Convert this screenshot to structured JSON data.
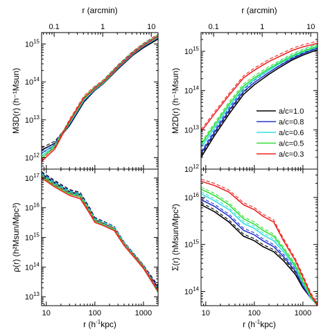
{
  "figure": {
    "top_axis_label": "r (arcmin)",
    "bottom_axis_label": "r (h⁻¹kpc)"
  },
  "chart_data": [
    {
      "id": "M3D",
      "type": "line",
      "ylabel": "M3D(r) (h⁻¹Msun)",
      "xlabel_top": "r (arcmin)",
      "xscale": "log",
      "yscale": "log",
      "xlim": [
        8,
        2000
      ],
      "ylim": [
        500000000000.0,
        2000000000000000.0
      ],
      "xticks": [
        10,
        100,
        1000
      ],
      "xtick_labels": [
        "",
        "",
        ""
      ],
      "top_xticks": [
        0.1,
        1,
        10
      ],
      "top_xtick_labels": [
        "0.1",
        "1",
        "10"
      ],
      "yticks": [
        1000000000000.0,
        10000000000000.0,
        100000000000000.0,
        1000000000000000.0
      ],
      "ytick_labels": [
        "10¹²",
        "10¹³",
        "10¹⁴",
        "10¹⁵"
      ],
      "series": [
        {
          "color": "#000000",
          "x": [
            8,
            15,
            30,
            60,
            100,
            150,
            300,
            600,
            1000,
            2000
          ],
          "y": [
            1600000000000.0,
            2400000000000.0,
            7000000000000.0,
            30000000000000.0,
            60000000000000.0,
            90000000000000.0,
            220000000000000.0,
            500000000000000.0,
            800000000000000.0,
            1350000000000000.0
          ]
        },
        {
          "color": "#2233cc",
          "x": [
            8,
            15,
            30,
            60,
            100,
            150,
            300,
            600,
            1000,
            2000
          ],
          "y": [
            1300000000000.0,
            2200000000000.0,
            7500000000000.0,
            32000000000000.0,
            62000000000000.0,
            92000000000000.0,
            230000000000000.0,
            520000000000000.0,
            850000000000000.0,
            1450000000000000.0
          ]
        },
        {
          "color": "#33dddd",
          "x": [
            8,
            15,
            30,
            60,
            100,
            150,
            300,
            600,
            1000,
            2000
          ],
          "y": [
            1100000000000.0,
            2000000000000.0,
            8000000000000.0,
            34000000000000.0,
            64000000000000.0,
            94000000000000.0,
            240000000000000.0,
            540000000000000.0,
            880000000000000.0,
            1500000000000000.0
          ]
        },
        {
          "color": "#33dd33",
          "x": [
            8,
            15,
            30,
            60,
            100,
            150,
            300,
            600,
            1000,
            2000
          ],
          "y": [
            950000000000.0,
            1900000000000.0,
            8500000000000.0,
            36000000000000.0,
            66000000000000.0,
            96000000000000.0,
            245000000000000.0,
            550000000000000.0,
            900000000000000.0,
            1550000000000000.0
          ]
        },
        {
          "color": "#ee2222",
          "x": [
            8,
            15,
            30,
            60,
            100,
            150,
            300,
            600,
            1000,
            2000
          ],
          "y": [
            800000000000.0,
            1700000000000.0,
            9000000000000.0,
            38000000000000.0,
            68000000000000.0,
            100000000000000.0,
            250000000000000.0,
            560000000000000.0,
            920000000000000.0,
            1600000000000000.0
          ]
        }
      ]
    },
    {
      "id": "M2D",
      "type": "line",
      "ylabel": "M2D(r) (h⁻¹Msun)",
      "xlabel_top": "r (arcmin)",
      "xscale": "log",
      "yscale": "log",
      "xlim": [
        8,
        2000
      ],
      "ylim": [
        1000000000000.0,
        3000000000000000.0
      ],
      "xticks": [
        10,
        100,
        1000
      ],
      "xtick_labels": [
        "",
        "",
        ""
      ],
      "top_xticks": [
        0.1,
        1,
        10
      ],
      "top_xtick_labels": [
        "0.1",
        "1",
        "10"
      ],
      "yticks": [
        1000000000000.0,
        10000000000000.0,
        100000000000000.0,
        1000000000000000.0
      ],
      "ytick_labels": [
        "10¹²",
        "10¹³",
        "10¹⁴",
        "10¹⁵"
      ],
      "legend": {
        "placement": "center-right",
        "entries": [
          "a/c=1.0",
          "a/c=0.8",
          "a/c=0.6",
          "a/c=0.5",
          "a/c=0.3"
        ]
      },
      "series": [
        {
          "name": "a/c=1.0",
          "color": "#000000",
          "x": [
            8,
            15,
            30,
            60,
            100,
            200,
            300,
            600,
            1000,
            2000
          ],
          "y": [
            2000000000000.0,
            7000000000000.0,
            25000000000000.0,
            80000000000000.0,
            140000000000000.0,
            260000000000000.0,
            360000000000000.0,
            600000000000000.0,
            800000000000000.0,
            1100000000000000.0
          ]
        },
        {
          "name": "a/c=0.8",
          "color": "#2233cc",
          "x": [
            8,
            15,
            30,
            60,
            100,
            200,
            300,
            600,
            1000,
            2000
          ],
          "y": [
            2500000000000.0,
            8500000000000.0,
            31000000000000.0,
            95000000000000.0,
            160000000000000.0,
            290000000000000.0,
            400000000000000.0,
            650000000000000.0,
            870000000000000.0,
            1200000000000000.0
          ]
        },
        {
          "name": "a/c=0.6",
          "color": "#33dddd",
          "x": [
            8,
            15,
            30,
            60,
            100,
            200,
            300,
            600,
            1000,
            2000
          ],
          "y": [
            3500000000000.0,
            11000000000000.0,
            39000000000000.0,
            115000000000000.0,
            190000000000000.0,
            330000000000000.0,
            450000000000000.0,
            720000000000000.0,
            950000000000000.0,
            1300000000000000.0
          ]
        },
        {
          "name": "a/c=0.5",
          "color": "#33dd33",
          "x": [
            8,
            15,
            30,
            60,
            100,
            200,
            300,
            600,
            1000,
            2000
          ],
          "y": [
            4200000000000.0,
            13000000000000.0,
            45000000000000.0,
            130000000000000.0,
            210000000000000.0,
            360000000000000.0,
            480000000000000.0,
            760000000000000.0,
            1000000000000000.0,
            1350000000000000.0
          ]
        },
        {
          "name": "a/c=0.3",
          "color": "#ee2222",
          "x": [
            8,
            15,
            30,
            60,
            100,
            200,
            300,
            600,
            1000,
            2000
          ],
          "y": [
            9000000000000.0,
            25000000000000.0,
            75000000000000.0,
            210000000000000.0,
            330000000000000.0,
            550000000000000.0,
            700000000000000.0,
            1050000000000000.0,
            1300000000000000.0,
            1600000000000000.0
          ]
        }
      ]
    },
    {
      "id": "rho",
      "type": "line",
      "ylabel": "ρ(r) (h²Msun/Mpc³)",
      "xlabel": "r (h⁻¹kpc)",
      "xscale": "log",
      "yscale": "log",
      "xlim": [
        8,
        2000
      ],
      "ylim": [
        5000000000000.0,
        2e+17
      ],
      "xticks": [
        10,
        100,
        1000
      ],
      "xtick_labels": [
        "10",
        "100",
        "1000"
      ],
      "yticks": [
        10000000000000.0,
        100000000000000.0,
        1000000000000000.0,
        1e+16,
        1e+17
      ],
      "ytick_labels": [
        "10¹³",
        "10¹⁴",
        "10¹⁵",
        "10¹⁶",
        "10¹⁷"
      ],
      "series": [
        {
          "color": "#000000",
          "x": [
            8,
            15,
            30,
            50,
            80,
            100,
            150,
            250,
            400,
            700,
            1000,
            2000
          ],
          "y": [
            1.4e+17,
            7e+16,
            3.5e+16,
            2.8e+16,
            8000000000000000.0,
            4000000000000000.0,
            3000000000000000.0,
            2000000000000000.0,
            600000000000000.0,
            200000000000000.0,
            100000000000000.0,
            20000000000000.0
          ]
        },
        {
          "color": "#2233cc",
          "x": [
            8,
            15,
            30,
            50,
            80,
            100,
            150,
            250,
            400,
            700,
            1000,
            2000
          ],
          "y": [
            1.3e+17,
            6.5e+16,
            3.3e+16,
            2.6e+16,
            7500000000000000.0,
            3800000000000000.0,
            2900000000000000.0,
            2000000000000000.0,
            600000000000000.0,
            200000000000000.0,
            100000000000000.0,
            18000000000000.0
          ]
        },
        {
          "color": "#33dddd",
          "x": [
            8,
            15,
            30,
            50,
            80,
            100,
            150,
            250,
            400,
            700,
            1000,
            2000
          ],
          "y": [
            1.2e+17,
            6e+16,
            3.1e+16,
            2.5e+16,
            7000000000000000.0,
            3600000000000000.0,
            2800000000000000.0,
            1900000000000000.0,
            580000000000000.0,
            190000000000000.0,
            95000000000000.0,
            15000000000000.0
          ]
        },
        {
          "color": "#33dd33",
          "x": [
            8,
            15,
            30,
            50,
            80,
            100,
            150,
            250,
            400,
            700,
            1000,
            2000
          ],
          "y": [
            1.1e+17,
            5.5e+16,
            2.9e+16,
            2.3e+16,
            6500000000000000.0,
            3400000000000000.0,
            2600000000000000.0,
            1800000000000000.0,
            550000000000000.0,
            190000000000000.0,
            95000000000000.0,
            14000000000000.0
          ]
        },
        {
          "color": "#ee2222",
          "x": [
            8,
            15,
            30,
            50,
            80,
            100,
            150,
            250,
            400,
            700,
            1000,
            2000
          ],
          "y": [
            1e+17,
            5e+16,
            2.6e+16,
            2e+16,
            6000000000000000.0,
            3200000000000000.0,
            2500000000000000.0,
            1700000000000000.0,
            530000000000000.0,
            180000000000000.0,
            90000000000000.0,
            15000000000000.0
          ]
        }
      ]
    },
    {
      "id": "Sigma",
      "type": "line",
      "ylabel": "Σ(r) (hMsun/Mpc²)",
      "xlabel": "r (h⁻¹kpc)",
      "xscale": "log",
      "yscale": "log",
      "xlim": [
        8,
        2000
      ],
      "ylim": [
        50000000000000.0,
        4e+16
      ],
      "xticks": [
        10,
        100,
        1000
      ],
      "xtick_labels": [
        "10",
        "100",
        "1000"
      ],
      "yticks": [
        100000000000000.0,
        1000000000000000.0,
        1e+16
      ],
      "ytick_labels": [
        "10¹⁴",
        "10¹⁵",
        "10¹⁶"
      ],
      "series": [
        {
          "color": "#000000",
          "x": [
            8,
            15,
            30,
            60,
            100,
            150,
            250,
            400,
            700,
            1000,
            1500,
            2000
          ],
          "y": [
            7000000000000000.0,
            5000000000000000.0,
            3000000000000000.0,
            1500000000000000.0,
            1200000000000000.0,
            900000000000000.0,
            700000000000000.0,
            450000000000000.0,
            230000000000000.0,
            120000000000000.0,
            70000000000000.0,
            50000000000000.0
          ]
        },
        {
          "color": "#2233cc",
          "x": [
            8,
            15,
            30,
            60,
            100,
            150,
            250,
            400,
            700,
            1000,
            1500,
            2000
          ],
          "y": [
            9000000000000000.0,
            6500000000000000.0,
            4000000000000000.0,
            2000000000000000.0,
            1600000000000000.0,
            1200000000000000.0,
            900000000000000.0,
            550000000000000.0,
            270000000000000.0,
            130000000000000.0,
            70000000000000.0,
            50000000000000.0
          ]
        },
        {
          "color": "#33dddd",
          "x": [
            8,
            15,
            30,
            60,
            100,
            150,
            250,
            400,
            700,
            1000,
            1500,
            2000
          ],
          "y": [
            1.2e+16,
            8500000000000000.0,
            5500000000000000.0,
            2800000000000000.0,
            2200000000000000.0,
            1600000000000000.0,
            1200000000000000.0,
            700000000000000.0,
            320000000000000.0,
            150000000000000.0,
            70000000000000.0,
            50000000000000.0
          ]
        },
        {
          "color": "#33dd33",
          "x": [
            8,
            15,
            30,
            60,
            100,
            150,
            250,
            400,
            700,
            1000,
            1500,
            2000
          ],
          "y": [
            1.5e+16,
            1.1e+16,
            7000000000000000.0,
            3500000000000000.0,
            2700000000000000.0,
            2000000000000000.0,
            1500000000000000.0,
            800000000000000.0,
            350000000000000.0,
            160000000000000.0,
            75000000000000.0,
            50000000000000.0
          ]
        },
        {
          "color": "#ee2222",
          "x": [
            8,
            15,
            30,
            60,
            100,
            150,
            250,
            400,
            700,
            1000,
            1500,
            2000
          ],
          "y": [
            2.2e+16,
            1.8e+16,
            1.3e+16,
            7000000000000000.0,
            5500000000000000.0,
            4000000000000000.0,
            3000000000000000.0,
            1200000000000000.0,
            450000000000000.0,
            200000000000000.0,
            80000000000000.0,
            50000000000000.0
          ]
        }
      ]
    }
  ]
}
